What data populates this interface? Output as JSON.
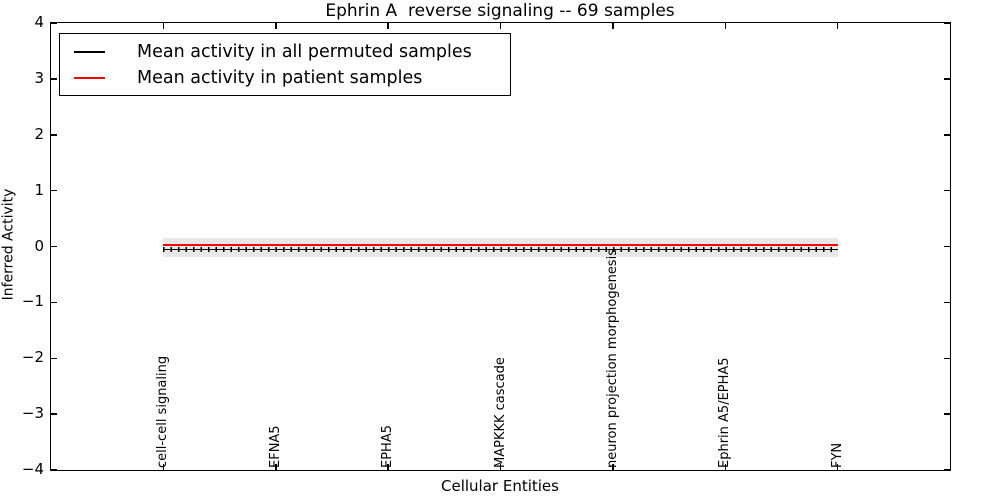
{
  "figure": {
    "background": "#ffffff"
  },
  "chart_data": {
    "type": "line",
    "title": "Ephrin A  reverse signaling -- 69 samples",
    "xlabel": "Cellular Entities",
    "ylabel": "Inferred Activity",
    "ylim": [
      -4,
      4
    ],
    "xlim_units": [
      -1,
      7
    ],
    "grid": false,
    "y_tick_labels": [
      "4",
      "3",
      "2",
      "1",
      "0",
      "−1",
      "−2",
      "−3",
      "−4"
    ],
    "categories": [
      "cell-cell signaling",
      "EFNA5",
      "EPHA5",
      "MAPKKK cascade",
      "neuron projection morphogenesis",
      "Ephrin A5/EPHA5",
      "FYN"
    ],
    "series": [
      {
        "name": "Mean activity in all permuted samples",
        "color": "#000000",
        "style": "solid-with-vertical-tick-markers",
        "values": [
          -0.05,
          -0.05,
          -0.05,
          -0.05,
          -0.05,
          -0.05,
          -0.05
        ]
      },
      {
        "name": "Mean activity in patient samples",
        "color": "#ff0000",
        "style": "solid",
        "values": [
          0.0,
          0.0,
          0.0,
          0.0,
          0.0,
          0.0,
          0.0
        ]
      }
    ],
    "uncertainty_band": {
      "upper": 0.15,
      "lower": -0.19,
      "color": "#e8e8e8",
      "span_categories": [
        0,
        6
      ]
    },
    "legend": {
      "position": "upper-left"
    }
  }
}
